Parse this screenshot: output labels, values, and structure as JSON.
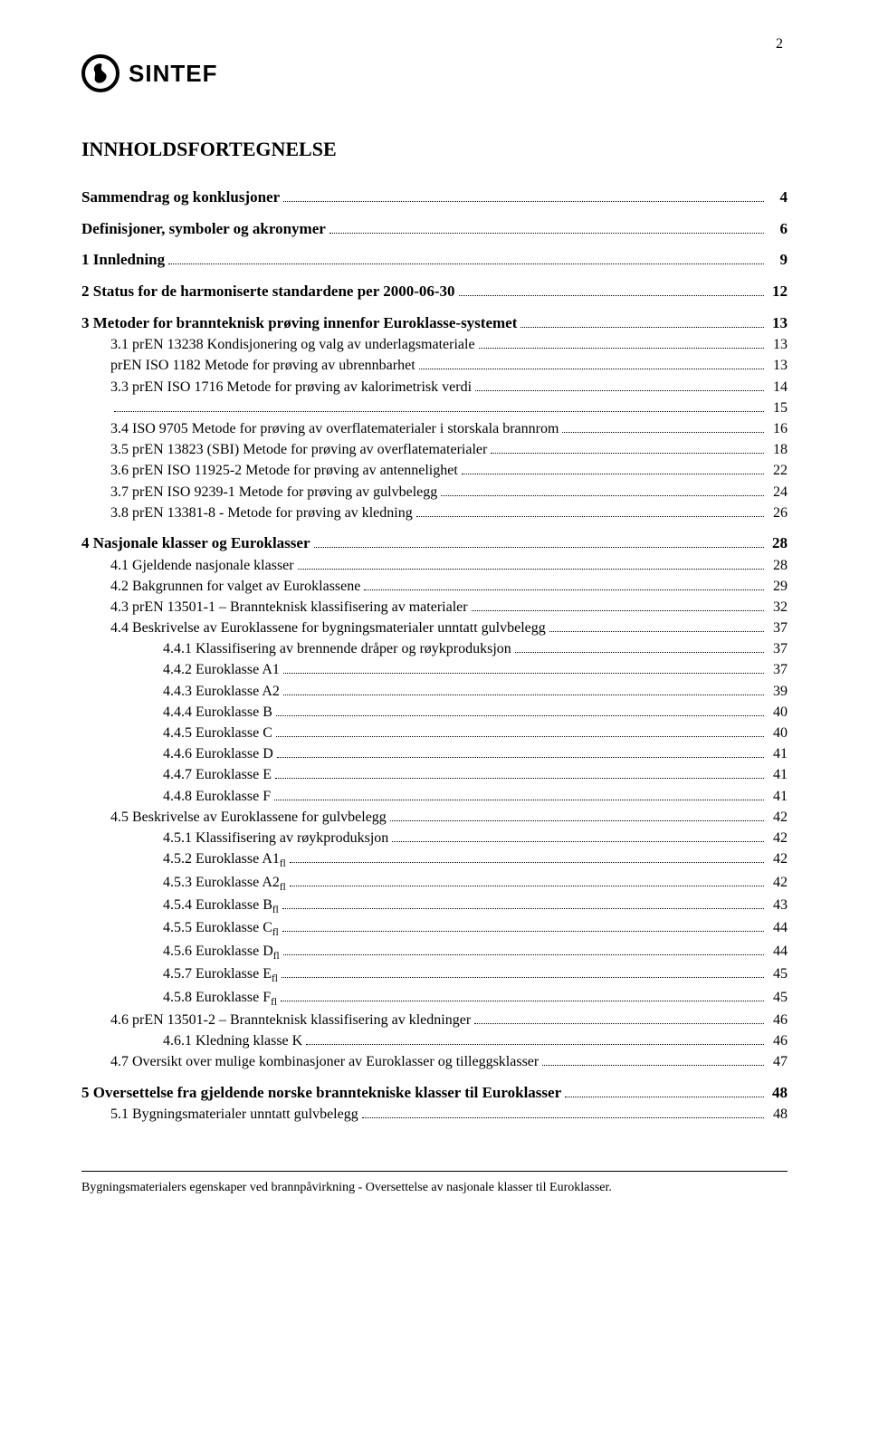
{
  "page_number": "2",
  "brand": "SINTEF",
  "title": "INNHOLDSFORTEGNELSE",
  "toc": [
    {
      "label": "Sammendrag og konklusjoner",
      "page": "4",
      "level": 0,
      "bold": true,
      "first": true
    },
    {
      "label": "Definisjoner, symboler og akronymer",
      "page": "6",
      "level": 0,
      "bold": true
    },
    {
      "label": "1   Innledning",
      "page": "9",
      "level": 0,
      "bold": true
    },
    {
      "label": "2   Status for de harmoniserte standardene per 2000-06-30",
      "page": "12",
      "level": 0,
      "bold": true
    },
    {
      "label": "3   Metoder for brannteknisk prøving innenfor Euroklasse-systemet",
      "page": "13",
      "level": 0,
      "bold": true
    },
    {
      "label": "3.1  prEN 13238 Kondisjonering og valg av underlagsmateriale",
      "page": "13",
      "level": 1
    },
    {
      "label": "prEN ISO 1182 Metode for prøving av ubrennbarhet",
      "page": "13",
      "level": 1
    },
    {
      "label": "3.3  prEN ISO 1716 Metode for prøving av kalorimetrisk verdi",
      "page": "14",
      "level": 1
    },
    {
      "label": "",
      "page": "15",
      "level": 1,
      "labelOnlyPrefix": ""
    },
    {
      "label": "3.4  ISO 9705 Metode for prøving av overflatematerialer i storskala brannrom",
      "page": "16",
      "level": 1
    },
    {
      "label": "3.5  prEN 13823 (SBI) Metode for prøving av overflatematerialer",
      "page": "18",
      "level": 1
    },
    {
      "label": "3.6  prEN ISO 11925-2 Metode for prøving av antennelighet",
      "page": "22",
      "level": 1
    },
    {
      "label": "3.7  prEN ISO 9239-1 Metode for prøving av gulvbelegg",
      "page": "24",
      "level": 1
    },
    {
      "label": "3.8  prEN 13381-8  - Metode for prøving av kledning",
      "page": "26",
      "level": 1
    },
    {
      "label": "4   Nasjonale klasser og Euroklasser",
      "page": "28",
      "level": 0,
      "bold": true
    },
    {
      "label": "4.1  Gjeldende nasjonale klasser",
      "page": "28",
      "level": 1
    },
    {
      "label": "4.2  Bakgrunnen for valget av Euroklassene",
      "page": "29",
      "level": 1
    },
    {
      "label": "4.3  prEN 13501-1 – Brannteknisk klassifisering av materialer",
      "page": "32",
      "level": 1
    },
    {
      "label": "4.4  Beskrivelse av Euroklassene for bygningsmaterialer unntatt gulvbelegg",
      "page": "37",
      "level": 1
    },
    {
      "label": "4.4.1    Klassifisering av brennende dråper og røykproduksjon",
      "page": "37",
      "level": 2
    },
    {
      "label": "4.4.2    Euroklasse A1",
      "page": "37",
      "level": 2
    },
    {
      "label": "4.4.3    Euroklasse A2",
      "page": "39",
      "level": 2
    },
    {
      "label": "4.4.4    Euroklasse B",
      "page": "40",
      "level": 2
    },
    {
      "label": "4.4.5    Euroklasse C",
      "page": "40",
      "level": 2
    },
    {
      "label": "4.4.6    Euroklasse D",
      "page": "41",
      "level": 2
    },
    {
      "label": "4.4.7    Euroklasse E",
      "page": "41",
      "level": 2
    },
    {
      "label": "4.4.8    Euroklasse F",
      "page": "41",
      "level": 2
    },
    {
      "label": "4.5  Beskrivelse av Euroklassene for gulvbelegg",
      "page": "42",
      "level": 1
    },
    {
      "label": "4.5.1    Klassifisering av røykproduksjon",
      "page": "42",
      "level": 2
    },
    {
      "label": "4.5.2    Euroklasse A1",
      "page": "42",
      "level": 2,
      "sub": "fl"
    },
    {
      "label": "4.5.3    Euroklasse A2",
      "page": "42",
      "level": 2,
      "sub": "fl"
    },
    {
      "label": "4.5.4    Euroklasse B",
      "page": "43",
      "level": 2,
      "sub": "fl"
    },
    {
      "label": "4.5.5    Euroklasse C",
      "page": "44",
      "level": 2,
      "sub": "fl"
    },
    {
      "label": "4.5.6    Euroklasse D",
      "page": "44",
      "level": 2,
      "sub": "fl"
    },
    {
      "label": "4.5.7    Euroklasse E",
      "page": "45",
      "level": 2,
      "sub": "fl"
    },
    {
      "label": "4.5.8    Euroklasse F",
      "page": "45",
      "level": 2,
      "sub": "fl"
    },
    {
      "label": "4.6  prEN 13501-2 – Brannteknisk klassifisering av kledninger",
      "page": "46",
      "level": 1
    },
    {
      "label": "4.6.1    Kledning klasse K",
      "page": "46",
      "level": 2
    },
    {
      "label": "4.7  Oversikt over mulige kombinasjoner av Euroklasser og tilleggsklasser",
      "page": "47",
      "level": 1
    },
    {
      "label": "5   Oversettelse fra gjeldende norske branntekniske klasser til Euroklasser",
      "page": "48",
      "level": 0,
      "bold": true
    },
    {
      "label": "5.1  Bygningsmaterialer unntatt gulvbelegg",
      "page": "48",
      "level": 1
    }
  ],
  "footer": "Bygningsmaterialers egenskaper ved brannpåvirkning - Oversettelse av nasjonale klasser til Euroklasser."
}
